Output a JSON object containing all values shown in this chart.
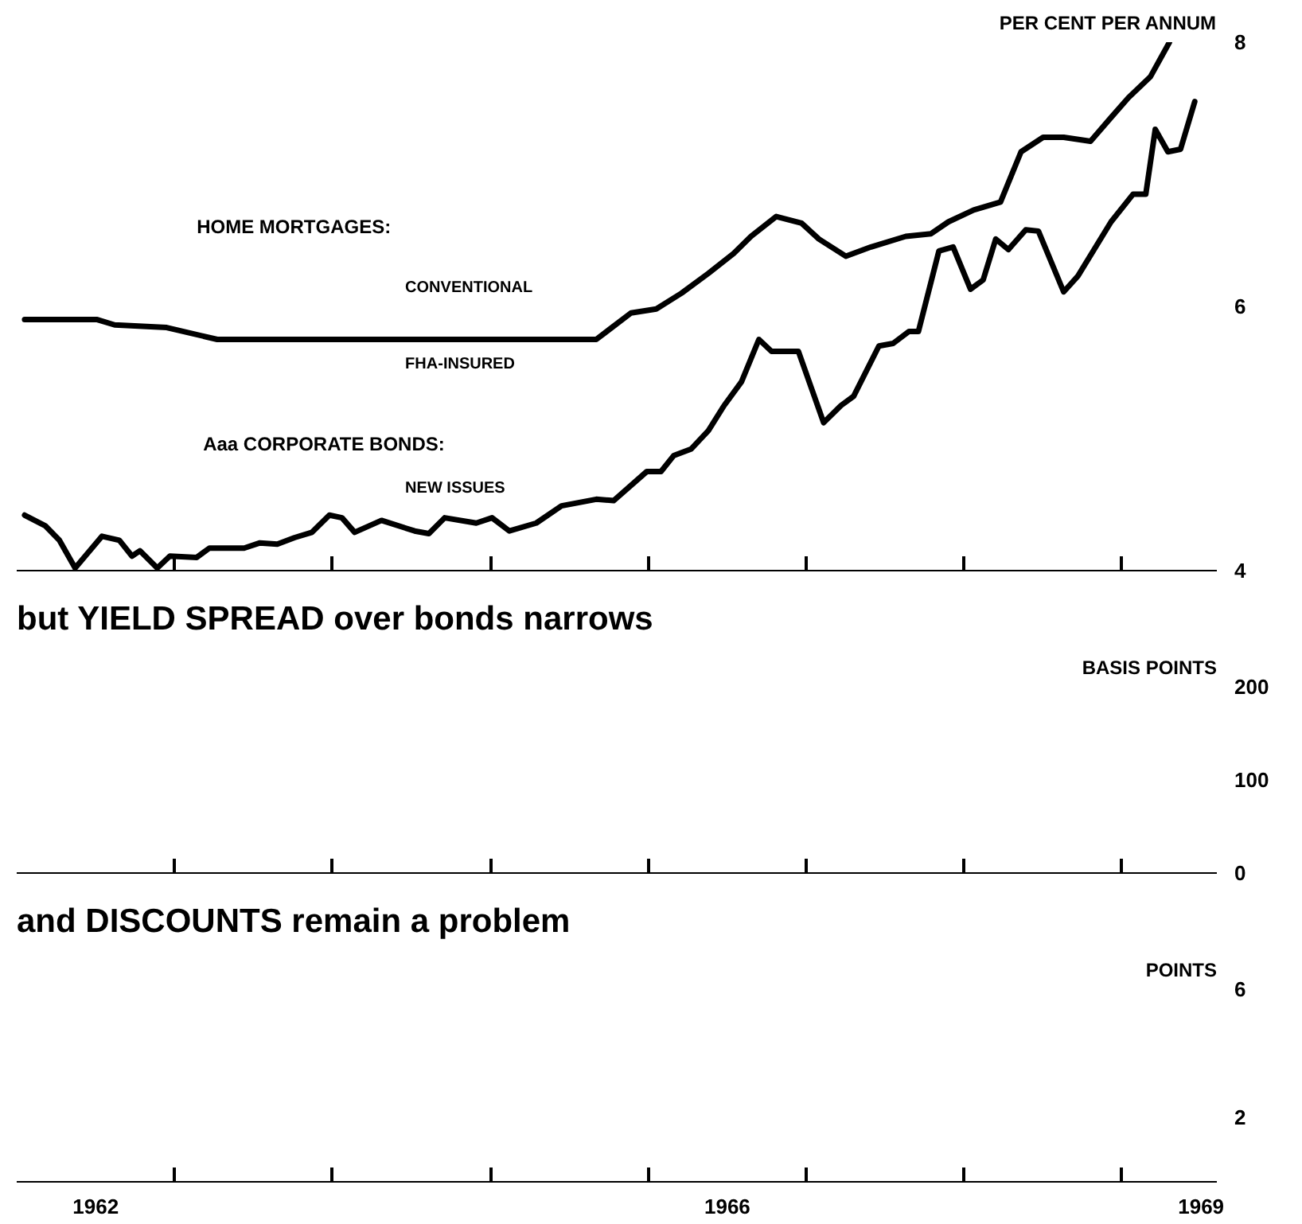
{
  "chart_data": [
    {
      "type": "line",
      "ylabel": "PER CENT PER ANNUM",
      "xlim": [
        1962,
        1969.6
      ],
      "ylim": [
        4,
        8
      ],
      "yticks": [
        4,
        6,
        8
      ],
      "tick_labels": "y",
      "xticks": [
        {
          "value": 1963,
          "label": null
        },
        {
          "value": 1964,
          "label": null
        },
        {
          "value": 1965,
          "label": null
        },
        {
          "value": 1966,
          "label": null
        },
        {
          "value": 1967,
          "label": null
        },
        {
          "value": 1968,
          "label": null
        },
        {
          "value": 1969,
          "label": null
        }
      ],
      "annotations": [
        "HOME MORTGAGES:",
        "CONVENTIONAL",
        "FHA-INSURED",
        "Aaa CORPORATE BONDS:",
        "NEW ISSUES"
      ],
      "series": [
        {
          "color": "#000000",
          "x": [
            1962.05,
            1962.51,
            1962.62,
            1962.95,
            1963.27,
            1965.67,
            1965.89,
            1966.05,
            1966.21,
            1966.38,
            1966.54,
            1966.65,
            1966.81,
            1966.97,
            1967.08,
            1967.25,
            1967.41,
            1967.63,
            1967.79,
            1967.9,
            1968.06,
            1968.23,
            1968.36,
            1968.5,
            1968.63,
            1968.8,
            1968.93,
            1969.04,
            1969.18,
            1969.3
          ],
          "values": [
            5.9,
            5.9,
            5.86,
            5.84,
            5.75,
            5.75,
            5.95,
            5.98,
            6.1,
            6.25,
            6.4,
            6.53,
            6.68,
            6.63,
            6.51,
            6.38,
            6.45,
            6.53,
            6.55,
            6.64,
            6.73,
            6.79,
            7.17,
            7.28,
            7.28,
            7.25,
            7.43,
            7.58,
            7.74,
            8.0
          ]
        },
        {
          "color": "#000000",
          "x": [
            1962.05,
            1962.18,
            1962.27,
            1962.37,
            1962.54,
            1962.65,
            1962.73,
            1962.78,
            1962.89,
            1962.97,
            1963.14,
            1963.22,
            1963.44,
            1963.54,
            1963.65,
            1963.76,
            1963.87,
            1963.98,
            1964.06,
            1964.14,
            1964.31,
            1964.52,
            1964.61,
            1964.71,
            1964.91,
            1965.01,
            1965.12,
            1965.29,
            1965.45,
            1965.67,
            1965.78,
            1965.99,
            1966.08,
            1966.16,
            1966.27,
            1966.38,
            1966.48,
            1966.59,
            1966.7,
            1966.78,
            1966.95,
            1967.11,
            1967.22,
            1967.3,
            1967.46,
            1967.55,
            1967.65,
            1967.71,
            1967.84,
            1967.93,
            1968.04,
            1968.12,
            1968.2,
            1968.28,
            1968.39,
            1968.47,
            1968.63,
            1968.72,
            1968.93,
            1969.07,
            1969.15,
            1969.21,
            1969.29,
            1969.37,
            1969.46
          ],
          "values": [
            4.42,
            4.34,
            4.23,
            4.02,
            4.26,
            4.23,
            4.11,
            4.15,
            4.02,
            4.11,
            4.1,
            4.17,
            4.17,
            4.21,
            4.2,
            4.25,
            4.29,
            4.42,
            4.4,
            4.29,
            4.38,
            4.3,
            4.28,
            4.4,
            4.36,
            4.4,
            4.3,
            4.36,
            4.49,
            4.54,
            4.53,
            4.75,
            4.75,
            4.87,
            4.92,
            5.06,
            5.25,
            5.43,
            5.75,
            5.66,
            5.66,
            5.12,
            5.25,
            5.32,
            5.7,
            5.72,
            5.81,
            5.81,
            6.42,
            6.45,
            6.13,
            6.2,
            6.51,
            6.43,
            6.58,
            6.57,
            6.11,
            6.23,
            6.64,
            6.85,
            6.85,
            7.34,
            7.17,
            7.19,
            7.55
          ]
        }
      ]
    },
    {
      "type": "line",
      "title": "but YIELD SPREAD over bonds narrows",
      "ylabel": "BASIS POINTS",
      "xlim": [
        1962,
        1969.6
      ],
      "ylim": [
        0,
        200
      ],
      "yticks": [
        0,
        100,
        200
      ],
      "tick_labels": "y",
      "xticks": [
        {
          "value": 1963,
          "label": null
        },
        {
          "value": 1964,
          "label": null
        },
        {
          "value": 1965,
          "label": null
        },
        {
          "value": 1966,
          "label": null
        },
        {
          "value": 1967,
          "label": null
        },
        {
          "value": 1968,
          "label": null
        },
        {
          "value": 1969,
          "label": null
        }
      ]
    },
    {
      "type": "line",
      "title": "and DISCOUNTS remain a problem",
      "ylabel": "POINTS",
      "xlim": [
        1962,
        1969.6
      ],
      "ylim": [
        0,
        6
      ],
      "yticks": [
        2,
        6
      ],
      "xticks": [
        {
          "value": 1962.5,
          "label": "1962"
        },
        {
          "value": 1963,
          "label": null
        },
        {
          "value": 1964,
          "label": null
        },
        {
          "value": 1965,
          "label": null
        },
        {
          "value": 1966,
          "label": null
        },
        {
          "value": 1966.5,
          "label": "1966"
        },
        {
          "value": 1967,
          "label": null
        },
        {
          "value": 1968,
          "label": null
        },
        {
          "value": 1969,
          "label": null
        },
        {
          "value": 1969.5,
          "label": "1969"
        }
      ]
    }
  ]
}
